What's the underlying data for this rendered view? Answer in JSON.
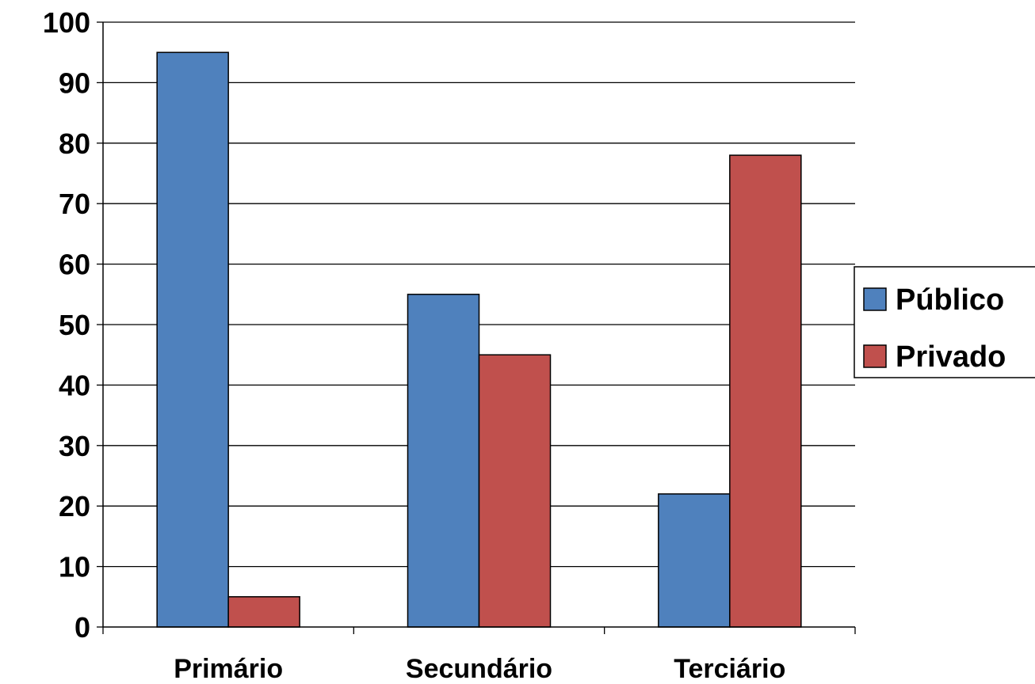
{
  "chart_data": {
    "type": "bar",
    "title": "",
    "xlabel": "",
    "ylabel": "",
    "categories": [
      "Primário",
      "Secundário",
      "Terciário"
    ],
    "series": [
      {
        "name": "Público",
        "values": [
          95,
          55,
          22
        ],
        "color": "#4f81bd"
      },
      {
        "name": "Privado",
        "values": [
          5,
          45,
          78
        ],
        "color": "#c0504d"
      }
    ],
    "ylim": [
      0,
      100
    ],
    "yticks": [
      0,
      10,
      20,
      30,
      40,
      50,
      60,
      70,
      80,
      90,
      100
    ],
    "grid": true,
    "legend_position": "right"
  }
}
